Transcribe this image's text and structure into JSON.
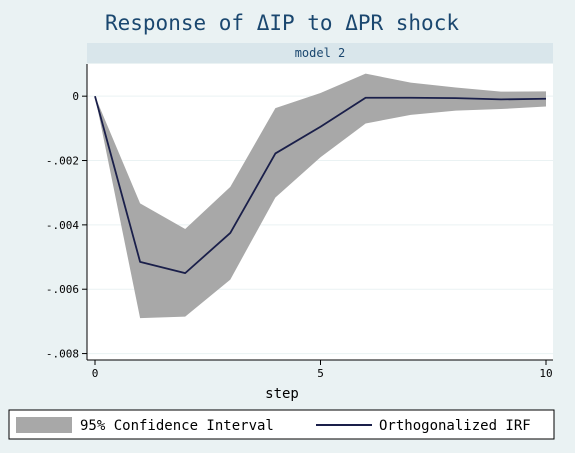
{
  "chart_data": {
    "type": "line",
    "title": "Response of ΔIP to ΔPR shock",
    "panel_title": "model 2",
    "xlabel": "step",
    "ylabel": "",
    "xlim": [
      0,
      10
    ],
    "ylim": [
      -0.0082,
      0.001
    ],
    "x_ticks": [
      0,
      5,
      10
    ],
    "x_tick_labels": [
      "0",
      "5",
      "10"
    ],
    "y_ticks": [
      0,
      -0.002,
      -0.004,
      -0.006,
      -0.008
    ],
    "y_tick_labels": [
      "0",
      "-.002",
      "-.004",
      "-.006",
      "-.008"
    ],
    "grid": true,
    "legend_position": "bottom",
    "x": [
      0,
      1,
      2,
      3,
      4,
      5,
      6,
      7,
      8,
      9,
      10
    ],
    "series": [
      {
        "name": "Orthogonalized IRF",
        "values": [
          0,
          -0.00515,
          -0.0055,
          -0.00425,
          -0.00178,
          -0.00095,
          -5e-05,
          -5e-05,
          -6e-05,
          -0.0001,
          -8e-05
        ],
        "color": "#1a1f4a"
      }
    ],
    "ci": {
      "name": "95% Confidence Interval",
      "lower": [
        0,
        -0.0069,
        -0.00685,
        -0.0057,
        -0.00315,
        -0.0019,
        -0.00085,
        -0.00058,
        -0.00045,
        -0.0004,
        -0.00032
      ],
      "upper": [
        0,
        -0.00333,
        -0.00413,
        -0.00282,
        -0.00037,
        0.0001,
        0.0007,
        0.00042,
        0.00027,
        0.00014,
        0.00015
      ],
      "color": "#a8a8a8"
    },
    "colors": {
      "background": "#eaf2f3",
      "plot_background": "#ffffff",
      "strip_background": "#d9e6eb",
      "title": "#1a476f",
      "grid": "#eaf2f3"
    }
  }
}
